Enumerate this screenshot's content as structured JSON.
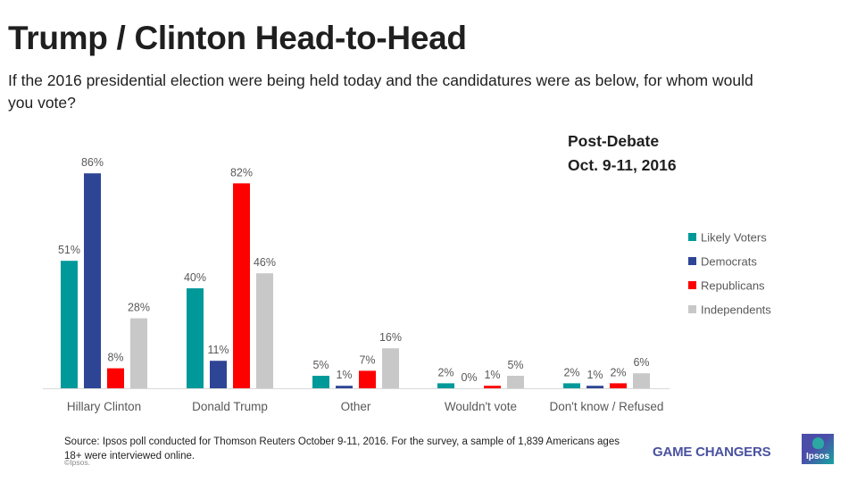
{
  "header": {
    "title": "Trump / Clinton Head-to-Head",
    "subtitle": "If the 2016 presidential election were being held today and the candidatures were as below, for whom would you vote?",
    "wave_line1": "Post-Debate",
    "wave_line2": "Oct. 9-11, 2016"
  },
  "chart_data": {
    "type": "bar",
    "title": "Trump / Clinton Head-to-Head",
    "xlabel": "",
    "ylabel": "",
    "ylim": [
      0,
      90
    ],
    "grid": false,
    "legend_position": "right",
    "value_suffix": "%",
    "categories": [
      "Hillary Clinton",
      "Donald Trump",
      "Other",
      "Wouldn't vote",
      "Don't know / Refused"
    ],
    "series": [
      {
        "name": "Likely Voters",
        "color": "#00999a",
        "values": [
          51,
          40,
          5,
          2,
          2
        ]
      },
      {
        "name": "Democrats",
        "color": "#2e4596",
        "values": [
          86,
          11,
          1,
          0,
          1
        ]
      },
      {
        "name": "Republicans",
        "color": "#ff0000",
        "values": [
          8,
          82,
          7,
          1,
          2
        ]
      },
      {
        "name": "Independents",
        "color": "#c8c8c8",
        "values": [
          28,
          46,
          16,
          5,
          6
        ]
      }
    ]
  },
  "footer": {
    "source": "Source: Ipsos poll conducted for Thomson Reuters October 9-11, 2016. For the survey, a sample of 1,839 Americans ages 18+ were interviewed online.",
    "copyright": "©Ipsos.",
    "brand_tagline": "GAME CHANGERS",
    "logo_label": "Ipsos"
  }
}
